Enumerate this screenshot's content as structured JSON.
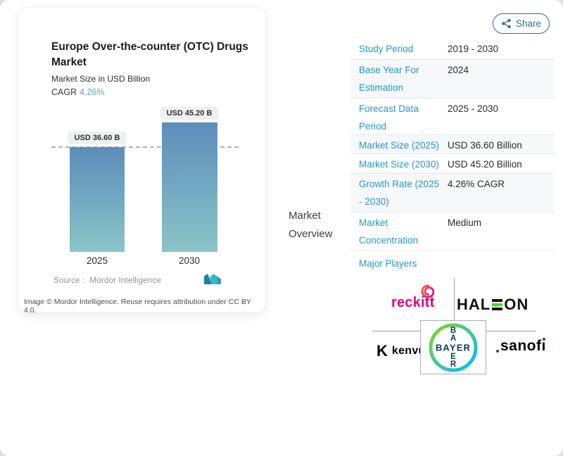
{
  "share": {
    "label": "Share"
  },
  "chart_card": {
    "title": "Europe Over-the-counter (OTC) Drugs\nMarket",
    "subtitle": "Market Size in USD Billion",
    "cagr_label": "CAGR",
    "cagr_value": "4.26%",
    "source_label": "Source :",
    "source_name": "Mordor Intelligence",
    "attribution": "Image © Mordor Intelligence. Reuse requires attribution under CC BY 4.0."
  },
  "chart_data": {
    "type": "bar",
    "title": "Europe Over-the-counter (OTC) Drugs Market",
    "ylabel": "Market Size in USD Billion",
    "categories": [
      "2025",
      "2030"
    ],
    "values": [
      36.6,
      45.2
    ],
    "labels": [
      "USD 36.60 B",
      "USD 45.20 B"
    ],
    "unit": "USD Billion",
    "cagr_percent": 4.26,
    "baseline_dashed_at_value": 36.6,
    "bar_gradient": [
      "#5d8dba",
      "#8ac5c8"
    ],
    "legend": "none",
    "grid": "off"
  },
  "section_label": "Market Overview",
  "table": {
    "rows": [
      {
        "label": "Study Period",
        "value": "2019 - 2030"
      },
      {
        "label": "Base Year For\nEstimation",
        "value": "2024"
      },
      {
        "label": "Forecast Data\nPeriod",
        "value": "2025 - 2030"
      },
      {
        "label": "Market Size (2025)",
        "value": "USD 36.60 Billion"
      },
      {
        "label": "Market Size (2030)",
        "value": "USD 45.20 Billion"
      },
      {
        "label": "Growth Rate (2025\n- 2030)",
        "value": "4.26% CAGR"
      },
      {
        "label": "Market\nConcentration",
        "value": "Medium"
      }
    ]
  },
  "major_players": {
    "label": "Major Players",
    "companies": [
      "reckitt",
      "HALEON",
      "kenvue",
      "BAYER",
      "sanofi"
    ],
    "reckitt": {
      "name": "reckitt"
    },
    "haleon": {
      "part1": "HAL",
      "part2": "ON"
    },
    "kenvue": {
      "glyph": "K",
      "name": "kenvue"
    },
    "bayer": {
      "word": "BAYER",
      "vertical_top": [
        "B",
        "A"
      ],
      "vertical_bottom": [
        "E",
        "R"
      ]
    },
    "sanofi": {
      "part1": "sanof",
      "part2": "ı"
    }
  },
  "colors": {
    "table_label_blue": "#2397cd",
    "cagr_blue": "#57a5c8",
    "share_teal": "#2d7191",
    "bar_top": "#5d8dba",
    "bar_bottom": "#8ac5c8",
    "reckitt_pink": "#e5007e",
    "haleon_green": "#30ea03",
    "sanofi_purple": "#7a00e6",
    "bayer_green": "#89d329",
    "bayer_blue": "#00bcff",
    "bayer_navy": "#0c3a5e"
  }
}
